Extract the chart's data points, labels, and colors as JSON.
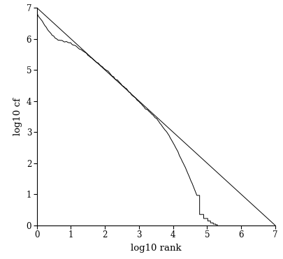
{
  "xlabel": "log10 rank",
  "ylabel": "log10 cf",
  "xlim": [
    0,
    7
  ],
  "ylim": [
    0,
    7
  ],
  "xticks": [
    0,
    1,
    2,
    3,
    4,
    5,
    6,
    7
  ],
  "yticks": [
    0,
    1,
    2,
    3,
    4,
    5,
    6,
    7
  ],
  "line_color": "#000000",
  "bg_color": "#ffffff",
  "figsize": [
    4.06,
    3.71
  ],
  "dpi": 100
}
